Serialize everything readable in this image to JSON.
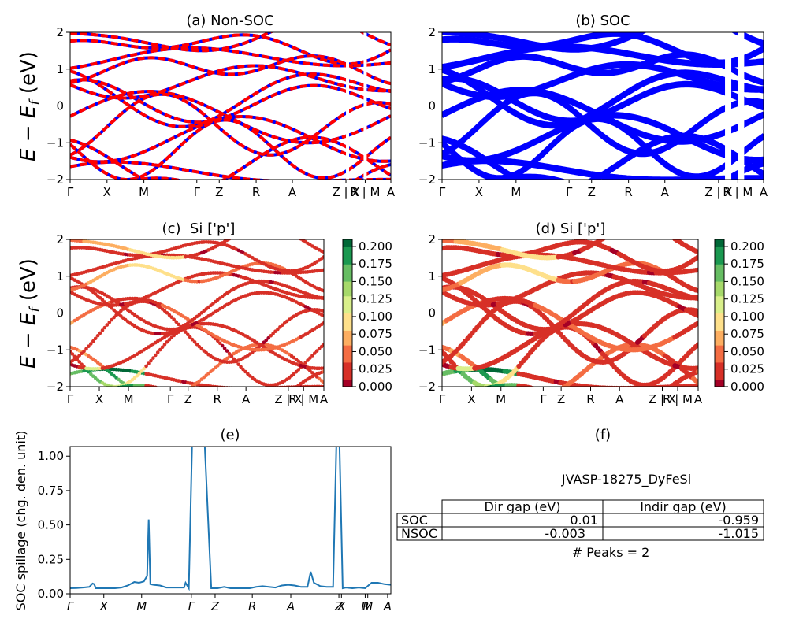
{
  "ylabel_bands": "E − E_f (eV)",
  "ylabel_bands_parts": {
    "E": "E",
    "minus": " − ",
    "Ef": "E",
    "sub": "f",
    "unit": " (eV)"
  },
  "kpath_labels_a": [
    "Γ",
    "X",
    "M",
    "Γ",
    "Z",
    "R",
    "A",
    "Z | X",
    "R | M",
    "A"
  ],
  "kpath_labels_c": [
    "Γ",
    "X",
    "M",
    "Γ",
    "Z",
    "R",
    "A",
    "Z | X",
    "R | M",
    "A"
  ],
  "kpath_labels_e": [
    "Γ",
    "X",
    "M",
    "Γ",
    "Z",
    "R",
    "A",
    "Z",
    "X",
    "R",
    "M",
    "A"
  ],
  "colorbar": {
    "ticks": [
      "0.000",
      "0.025",
      "0.050",
      "0.075",
      "0.100",
      "0.125",
      "0.150",
      "0.175",
      "0.200"
    ],
    "range": [
      0,
      0.21
    ],
    "colors": [
      "#a50026",
      "#d73027",
      "#f46d43",
      "#fdae61",
      "#fee08b",
      "#d9ef8b",
      "#a6d96a",
      "#66bd63",
      "#1a9850",
      "#006837"
    ]
  },
  "band_colors": {
    "nonsoc_under": "#0000ff",
    "nonsoc_over": "#ff0000",
    "soc": "#0000ff"
  },
  "chart_data": [
    {
      "id": "a",
      "type": "line",
      "title": "(a) Non-SOC",
      "ylabel": "E − E_f (eV)",
      "ylim": [
        -2,
        2
      ],
      "yticks": [
        "2",
        "1",
        "0",
        "−1",
        "−2"
      ],
      "xticks": [
        "Γ",
        "X",
        "M",
        "Γ",
        "Z",
        "R",
        "A",
        "Z | X",
        "R | M",
        "A"
      ],
      "xpos": [
        0,
        0.14,
        0.28,
        0.49,
        0.58,
        0.72,
        0.86,
        1.03,
        1.14,
        1.26
      ]
    },
    {
      "id": "b",
      "type": "line",
      "title": "(b) SOC",
      "ylim": [
        -2,
        2
      ],
      "yticks": [
        "2",
        "1",
        "0",
        "−1",
        "−2"
      ],
      "xticks": [
        "Γ",
        "X",
        "M",
        "Γ",
        "Z",
        "R",
        "A",
        "Z | X",
        "R | M",
        "A"
      ]
    },
    {
      "id": "c",
      "type": "scatter",
      "title": "(c)  Si ['p']",
      "ylabel": "E − E_f (eV)",
      "ylim": [
        -2,
        2
      ],
      "yticks": [
        "2",
        "1",
        "0",
        "−1",
        "−2"
      ],
      "xticks": [
        "Γ",
        "X",
        "M",
        "Γ",
        "Z",
        "R",
        "A",
        "Z | X",
        "R | M",
        "A"
      ],
      "colorbar_range": [
        0,
        0.21
      ]
    },
    {
      "id": "d",
      "type": "scatter",
      "title": "(d) Si ['p']",
      "ylim": [
        -2,
        2
      ],
      "yticks": [
        "2",
        "1",
        "0",
        "−1",
        "−2"
      ],
      "xticks": [
        "Γ",
        "X",
        "M",
        "Γ",
        "Z",
        "R",
        "A",
        "Z | X",
        "R | M",
        "A"
      ],
      "colorbar_range": [
        0,
        0.21
      ]
    },
    {
      "id": "e",
      "type": "line",
      "title": "(e)",
      "ylabel": "SOC spillage (chg. den. unit)",
      "ylim": [
        0,
        1.07
      ],
      "yticks": [
        "0.00",
        "0.25",
        "0.50",
        "0.75",
        "1.00"
      ],
      "ytick_values": [
        0,
        0.25,
        0.5,
        0.75,
        1.0
      ],
      "xticks": [
        "Γ",
        "X",
        "M",
        "Γ",
        "Z",
        "R",
        "A",
        "Z",
        "X",
        "R",
        "M",
        "A"
      ],
      "series_color": "#1f77b4",
      "x": [
        0,
        0.02,
        0.04,
        0.06,
        0.07,
        0.075,
        0.08,
        0.1,
        0.12,
        0.14,
        0.16,
        0.18,
        0.2,
        0.215,
        0.23,
        0.24,
        0.245,
        0.25,
        0.26,
        0.28,
        0.3,
        0.32,
        0.34,
        0.355,
        0.36,
        0.37,
        0.38,
        0.39,
        0.395,
        0.4,
        0.42,
        0.44,
        0.46,
        0.48,
        0.5,
        0.52,
        0.54,
        0.56,
        0.57,
        0.58,
        0.6,
        0.62,
        0.64,
        0.66,
        0.68,
        0.7,
        0.72,
        0.74,
        0.75,
        0.76,
        0.78,
        0.8,
        0.82,
        0.83,
        0.835,
        0.84,
        0.85,
        0.86,
        0.88,
        0.9,
        0.92,
        0.94,
        0.96,
        0.98,
        1.0
      ],
      "y": [
        0.04,
        0.042,
        0.045,
        0.05,
        0.075,
        0.07,
        0.04,
        0.04,
        0.04,
        0.04,
        0.045,
        0.06,
        0.085,
        0.08,
        0.09,
        0.13,
        0.54,
        0.07,
        0.065,
        0.06,
        0.045,
        0.045,
        0.045,
        0.045,
        0.08,
        0.04,
        1.07,
        1.07,
        1.07,
        1.07,
        1.07,
        0.04,
        0.04,
        0.05,
        0.04,
        0.04,
        0.04,
        0.04,
        0.045,
        0.05,
        0.055,
        0.05,
        0.045,
        0.06,
        0.065,
        0.06,
        0.05,
        0.05,
        0.16,
        0.08,
        0.055,
        0.05,
        0.05,
        1.07,
        1.07,
        1.07,
        0.04,
        0.045,
        0.04,
        0.045,
        0.04,
        0.08,
        0.08,
        0.07,
        0.065
      ]
    },
    {
      "id": "f",
      "type": "table",
      "title": "(f)",
      "subtitle": "JVASP-18275_DyFeSi",
      "columns": [
        "",
        "Dir gap (eV)",
        "Indir gap (eV)"
      ],
      "rows": [
        [
          "SOC",
          "0.01",
          "-0.959"
        ],
        [
          "NSOC",
          "-0.003",
          "-1.015"
        ]
      ],
      "footer": "# Peaks = 2"
    }
  ]
}
